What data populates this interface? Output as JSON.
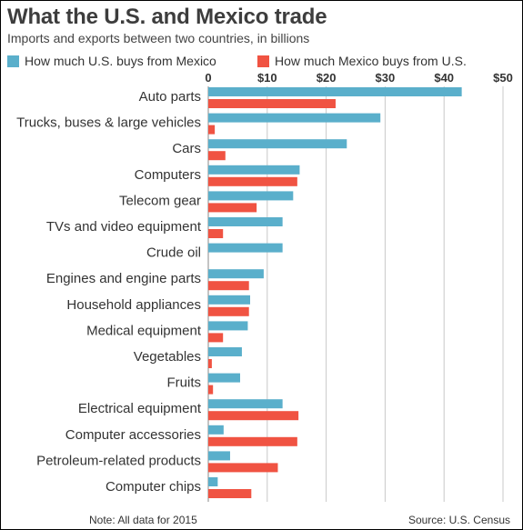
{
  "chart_data": {
    "type": "bar",
    "orientation": "horizontal",
    "title": "What the U.S. and Mexico trade",
    "subtitle": "Imports and exports between two countries, in billions",
    "categories": [
      "Auto parts",
      "Trucks, buses & large vehicles",
      "Cars",
      "Computers",
      "Telecom gear",
      "TVs and video equipment",
      "Crude oil",
      "Engines and engine parts",
      "Household appliances",
      "Medical equipment",
      "Vegetables",
      "Fruits",
      "Electrical equipment",
      "Computer accessories",
      "Petroleum-related products",
      "Computer chips"
    ],
    "series": [
      {
        "name": "How much  U.S. buys from Mexico",
        "color": "#5aafcb",
        "values": [
          43,
          29.2,
          23.5,
          15.5,
          14.4,
          12.6,
          12.6,
          9.4,
          7.1,
          6.7,
          5.7,
          5.4,
          12.6,
          2.6,
          3.7,
          1.6
        ]
      },
      {
        "name": "How much Mexico buys from U.S.",
        "color": "#f05342",
        "values": [
          21.6,
          1.1,
          2.9,
          15.1,
          8.2,
          2.5,
          0,
          6.9,
          6.9,
          2.5,
          0.6,
          0.8,
          15.3,
          15.1,
          11.8,
          7.3
        ]
      }
    ],
    "x_ticks": [
      "0",
      "$10",
      "$20",
      "$30",
      "$40",
      "$50"
    ],
    "xlim": [
      0,
      50
    ],
    "grid": true,
    "legend_position": "top",
    "footer_note": "Note: All data for 2015",
    "footer_source": "Source: U.S. Census"
  }
}
